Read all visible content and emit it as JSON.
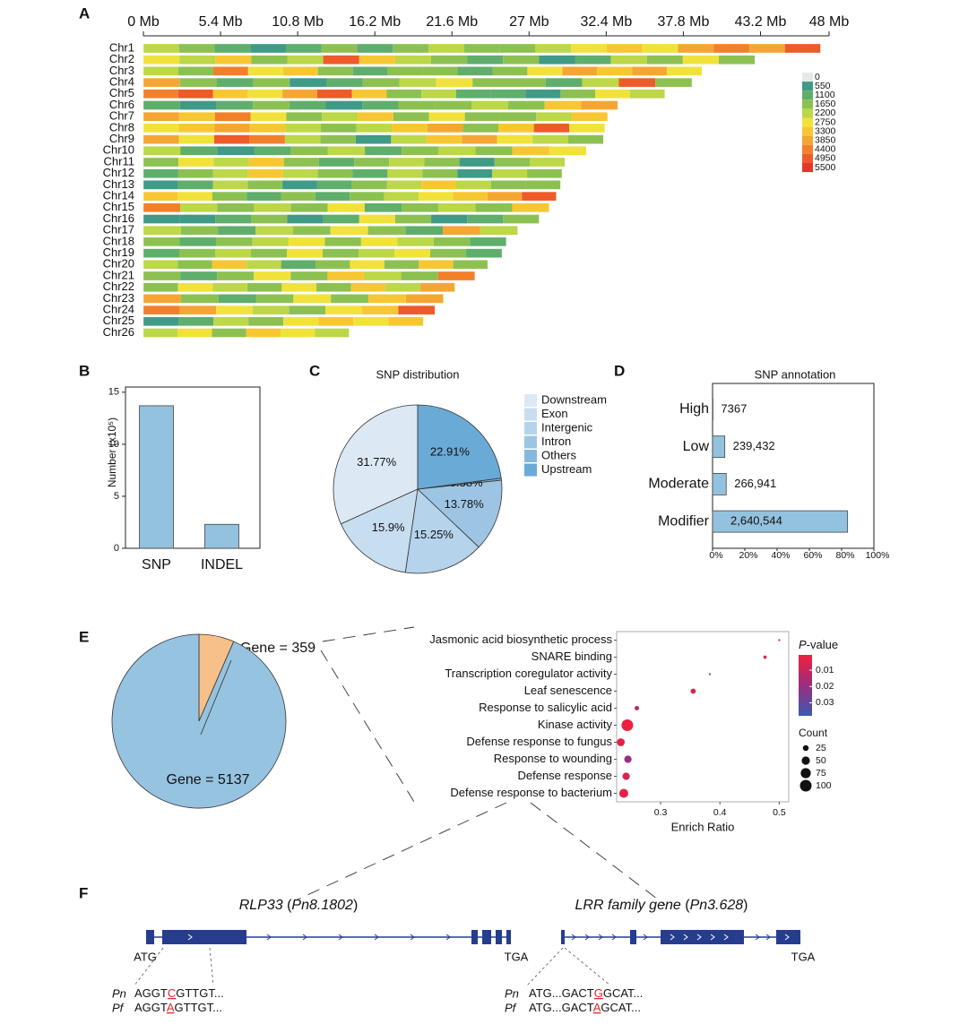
{
  "panel_labels": [
    "A",
    "B",
    "C",
    "D",
    "E",
    "F"
  ],
  "chart_data": [
    {
      "type": "heatmap",
      "xlim": [
        0,
        48
      ],
      "xticks": [
        {
          "value": 0,
          "label": "0 Mb"
        },
        {
          "value": 5.4,
          "label": "5.4 Mb"
        },
        {
          "value": 10.8,
          "label": "10.8 Mb"
        },
        {
          "value": 16.2,
          "label": "16.2 Mb"
        },
        {
          "value": 21.6,
          "label": "21.6 Mb"
        },
        {
          "value": 27,
          "label": "27 Mb"
        },
        {
          "value": 32.4,
          "label": "32.4 Mb"
        },
        {
          "value": 37.8,
          "label": "37.8 Mb"
        },
        {
          "value": 43.2,
          "label": "43.2 Mb"
        },
        {
          "value": 48,
          "label": "48 Mb"
        }
      ],
      "series": [
        {
          "name": "Chr1",
          "length": 47.4,
          "values": [
            2200,
            1650,
            1100,
            550,
            1100,
            1650,
            1100,
            1650,
            2200,
            1650,
            1650,
            2200,
            2750,
            3300,
            2750,
            3850,
            4400,
            3850,
            4950
          ]
        },
        {
          "name": "Chr2",
          "length": 42.8,
          "values": [
            2750,
            2200,
            3300,
            1650,
            2200,
            4950,
            3300,
            2200,
            1650,
            1100,
            1650,
            550,
            1100,
            2200,
            1650,
            2750,
            1650
          ]
        },
        {
          "name": "Chr3",
          "length": 39.1,
          "values": [
            2200,
            1650,
            4400,
            2750,
            3300,
            1650,
            1100,
            1650,
            1650,
            1100,
            1650,
            2750,
            3850,
            3300,
            3850,
            2750
          ]
        },
        {
          "name": "Chr4",
          "length": 38.4,
          "values": [
            3850,
            1650,
            1100,
            1650,
            550,
            1100,
            1650,
            2200,
            2750,
            1650,
            1650,
            1100,
            2200,
            4950,
            1650
          ]
        },
        {
          "name": "Chr5",
          "length": 36.5,
          "values": [
            4400,
            4950,
            3300,
            2750,
            3850,
            4950,
            3300,
            1650,
            2200,
            1100,
            1100,
            550,
            1650,
            2750,
            2200
          ]
        },
        {
          "name": "Chr6",
          "length": 33.2,
          "values": [
            1100,
            550,
            1100,
            1650,
            1100,
            550,
            1100,
            1650,
            1650,
            2200,
            1650,
            3300,
            3850
          ]
        },
        {
          "name": "Chr7",
          "length": 32.5,
          "values": [
            3850,
            3300,
            4400,
            2750,
            1650,
            2200,
            3300,
            1650,
            2750,
            1650,
            1650,
            2200,
            3300
          ]
        },
        {
          "name": "Chr8",
          "length": 32.3,
          "values": [
            2750,
            3300,
            3850,
            3300,
            2200,
            1650,
            2200,
            3300,
            3850,
            1650,
            3300,
            4950,
            2750
          ]
        },
        {
          "name": "Chr9",
          "length": 32.2,
          "values": [
            3850,
            2750,
            4950,
            4400,
            2200,
            1650,
            550,
            2200,
            3300,
            3850,
            2750,
            2200,
            1650
          ]
        },
        {
          "name": "Chr10",
          "length": 31,
          "values": [
            2200,
            1100,
            550,
            1100,
            1650,
            2200,
            1100,
            1650,
            2200,
            1650,
            3300,
            2750
          ]
        },
        {
          "name": "Chr11",
          "length": 29.5,
          "values": [
            1650,
            2750,
            2200,
            3300,
            1650,
            1100,
            1650,
            2200,
            1650,
            550,
            1650,
            2200
          ]
        },
        {
          "name": "Chr12",
          "length": 29.3,
          "values": [
            1100,
            1650,
            2200,
            3300,
            2200,
            1650,
            1100,
            2200,
            1650,
            550,
            2200,
            1650
          ]
        },
        {
          "name": "Chr13",
          "length": 29.2,
          "values": [
            550,
            1100,
            2200,
            1650,
            550,
            1100,
            1650,
            2200,
            3300,
            2200,
            1650,
            1650
          ]
        },
        {
          "name": "Chr14",
          "length": 28.9,
          "values": [
            3300,
            2750,
            1650,
            1100,
            1650,
            1100,
            1650,
            2200,
            2750,
            3300,
            3850,
            4950
          ]
        },
        {
          "name": "Chr15",
          "length": 28.4,
          "values": [
            4400,
            2200,
            1650,
            2200,
            1650,
            2750,
            1100,
            1650,
            2200,
            1650,
            3300
          ]
        },
        {
          "name": "Chr16",
          "length": 27.7,
          "values": [
            550,
            550,
            1100,
            1650,
            550,
            1100,
            2750,
            1650,
            550,
            1100,
            1650
          ]
        },
        {
          "name": "Chr17",
          "length": 26.2,
          "values": [
            2200,
            1650,
            1100,
            2200,
            1650,
            2750,
            1650,
            1100,
            3850,
            2200
          ]
        },
        {
          "name": "Chr18",
          "length": 25.4,
          "values": [
            1650,
            1100,
            1650,
            2200,
            2750,
            1650,
            2750,
            2200,
            1650,
            1100
          ]
        },
        {
          "name": "Chr19",
          "length": 25.1,
          "values": [
            1100,
            1650,
            2200,
            1650,
            2750,
            1650,
            2200,
            2750,
            1650,
            1100
          ]
        },
        {
          "name": "Chr20",
          "length": 24.1,
          "values": [
            2200,
            1650,
            3300,
            2200,
            1100,
            1650,
            2750,
            1650,
            3300,
            1650
          ]
        },
        {
          "name": "Chr21",
          "length": 23.2,
          "values": [
            1650,
            1100,
            1650,
            2750,
            1650,
            3300,
            2200,
            1650,
            4400
          ]
        },
        {
          "name": "Chr22",
          "length": 21.8,
          "values": [
            1650,
            2750,
            2200,
            1650,
            2750,
            1650,
            3300,
            2200,
            3850
          ]
        },
        {
          "name": "Chr23",
          "length": 21,
          "values": [
            3850,
            1650,
            1100,
            1650,
            2750,
            1650,
            3300,
            3850
          ]
        },
        {
          "name": "Chr24",
          "length": 20.4,
          "values": [
            4400,
            3850,
            2750,
            2200,
            1650,
            2750,
            3300,
            4950
          ]
        },
        {
          "name": "Chr25",
          "length": 19.6,
          "values": [
            550,
            1100,
            2200,
            1650,
            2750,
            3300,
            2750,
            3300
          ]
        },
        {
          "name": "Chr26",
          "length": 14.4,
          "values": [
            2200,
            2750,
            1650,
            3300,
            2750,
            2200
          ]
        }
      ],
      "legend": {
        "ticks": [
          0,
          550,
          1100,
          1650,
          2200,
          2750,
          3300,
          3850,
          4400,
          4950,
          5500
        ],
        "colors": [
          "#e6e8e8",
          "#3f9a86",
          "#5fae6c",
          "#8cc152",
          "#bcd748",
          "#f1e23b",
          "#f7c733",
          "#f5a632",
          "#f2802b",
          "#ee5a2a",
          "#e8352b"
        ]
      }
    },
    {
      "type": "bar",
      "ylabel": "Number (x10⁵)",
      "categories": [
        "SNP",
        "INDEL"
      ],
      "values": [
        13.7,
        2.3
      ],
      "color": "#93c2df",
      "ylim": [
        0,
        15.5
      ],
      "yticks": [
        0,
        5,
        10,
        15
      ]
    },
    {
      "type": "pie",
      "title": "SNP distribution",
      "categories": [
        "Downstream",
        "Exon",
        "Intergenic",
        "Intron",
        "Others",
        "Upstream"
      ],
      "values": [
        31.77,
        15.9,
        15.25,
        13.78,
        0.38,
        22.91
      ],
      "value_labels": [
        "31.77%",
        "15.9%",
        "15.25%",
        "13.78%",
        "0.38%",
        "22.91%"
      ],
      "colors": [
        "#dce9f5",
        "#c7ddf0",
        "#b5d3eb",
        "#9dc5e3",
        "#86b8dc",
        "#6aaad6"
      ]
    },
    {
      "type": "barh",
      "title": "SNP annotation",
      "categories": [
        "High",
        "Low",
        "Moderate",
        "Modifier"
      ],
      "values": [
        0.23,
        7.59,
        8.46,
        83.71
      ],
      "count_labels": [
        "7367",
        "239,432",
        "266,941",
        "2,640,544"
      ],
      "color": "#93c2df",
      "xlim": [
        0,
        100
      ],
      "xticks": [
        {
          "value": 0,
          "label": "0%"
        },
        {
          "value": 20,
          "label": "20%"
        },
        {
          "value": 40,
          "label": "40%"
        },
        {
          "value": 60,
          "label": "60%"
        },
        {
          "value": 80,
          "label": "80%"
        },
        {
          "value": 100,
          "label": "100%"
        }
      ]
    },
    {
      "type": "pie",
      "values": [
        359,
        5137
      ],
      "value_labels": [
        "Gene = 359",
        "Gene = 5137"
      ],
      "colors": [
        "#f7c08a",
        "#96c3e0"
      ]
    },
    {
      "type": "dot",
      "categories": [
        "Jasmonic acid biosynthetic process",
        "SNARE binding",
        "Transcription coregulator activity",
        "Leaf senescence",
        "Response to salicylic acid",
        "Kinase activity",
        "Defense response to fungus",
        "Response to wounding",
        "Defense response",
        "Defense response to bacterium"
      ],
      "x": [
        0.5,
        0.476,
        0.383,
        0.355,
        0.26,
        0.244,
        0.233,
        0.245,
        0.242,
        0.238
      ],
      "pvalues": [
        0.003,
        0.005,
        0.036,
        0.004,
        0.012,
        0.002,
        0.004,
        0.02,
        0.006,
        0.003
      ],
      "counts": [
        3,
        8,
        3,
        20,
        15,
        100,
        45,
        40,
        40,
        60
      ],
      "xlabel": "Enrich Ratio",
      "xlim": [
        0.226,
        0.516
      ],
      "xticks": [
        0.3,
        0.4,
        0.5
      ],
      "color_legend": {
        "title_parts": [
          "P",
          "-value"
        ],
        "clim": [
          0.0006,
          0.038
        ],
        "ticks": [
          0.01,
          0.02,
          0.03
        ],
        "colors": [
          "#f0203c",
          "#9b2d7f",
          "#3a5bb0"
        ]
      },
      "size_legend": {
        "title": "Count",
        "values": [
          25,
          50,
          75,
          100
        ]
      }
    }
  ],
  "gene_panels": [
    {
      "title_parts": [
        "RLP33",
        " (",
        "Pn8.1802",
        ")"
      ],
      "start": "ATG",
      "end": "TGA",
      "sequences": [
        {
          "species": "Pn",
          "before": "AGGT",
          "snp": "C",
          "after": "GTTGT..."
        },
        {
          "species": "Pf",
          "before": "AGGT",
          "snp": "A",
          "after": "GTTGT..."
        }
      ]
    },
    {
      "title_parts": [
        "LRR family gene",
        " (",
        "Pn3.628",
        ")"
      ],
      "end": "TGA",
      "sequences": [
        {
          "species": "Pn",
          "before": "ATG...GACT",
          "snp": "G",
          "after": "GCAT..."
        },
        {
          "species": "Pf",
          "before": "ATG...GACT",
          "snp": "A",
          "after": "GCAT..."
        }
      ]
    }
  ]
}
